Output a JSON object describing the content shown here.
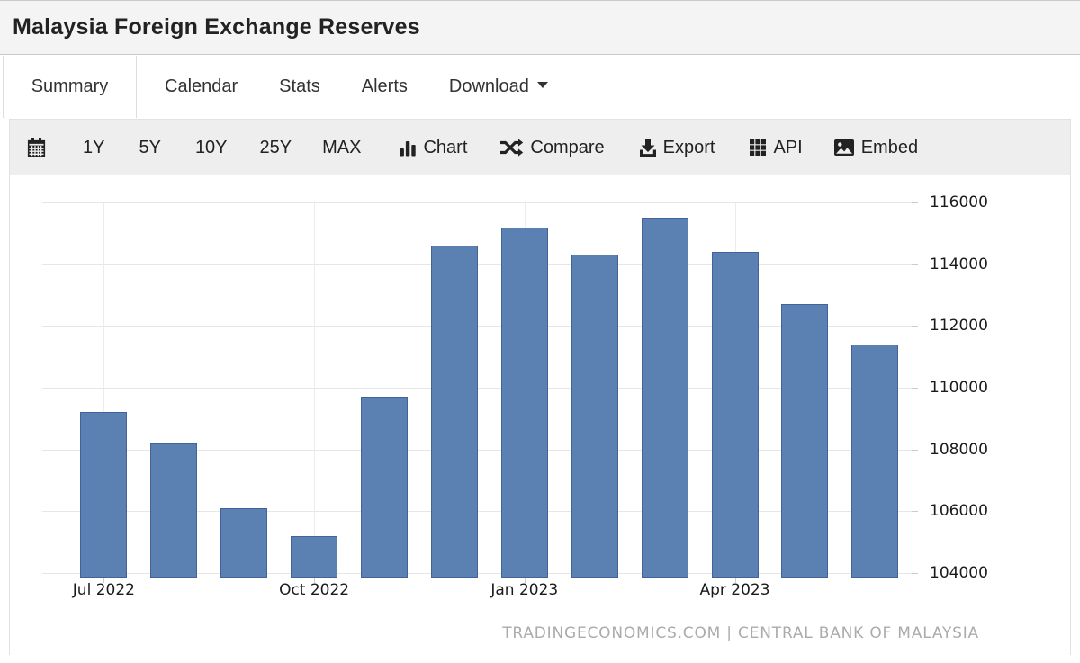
{
  "header": {
    "title": "Malaysia Foreign Exchange Reserves"
  },
  "tabs": [
    {
      "label": "Summary",
      "active": true
    },
    {
      "label": "Calendar",
      "active": false
    },
    {
      "label": "Stats",
      "active": false
    },
    {
      "label": "Alerts",
      "active": false
    },
    {
      "label": "Download",
      "active": false,
      "has_caret": true
    }
  ],
  "toolbar": {
    "calendar_icon": "calendar-icon",
    "ranges": [
      "1Y",
      "5Y",
      "10Y",
      "25Y",
      "MAX"
    ],
    "buttons": [
      {
        "icon": "bar-chart-icon",
        "label": "Chart"
      },
      {
        "icon": "shuffle-icon",
        "label": "Compare"
      },
      {
        "icon": "download-icon",
        "label": "Export"
      },
      {
        "icon": "grid-icon",
        "label": "API"
      },
      {
        "icon": "image-icon",
        "label": "Embed"
      }
    ]
  },
  "chart_data": {
    "type": "bar",
    "categories": [
      "Jul 2022",
      "Aug 2022",
      "Sep 2022",
      "Oct 2022",
      "Nov 2022",
      "Dec 2022",
      "Jan 2023",
      "Feb 2023",
      "Mar 2023",
      "Apr 2023",
      "May 2023",
      "Jun 2023"
    ],
    "values": [
      109200,
      108200,
      106100,
      105200,
      109700,
      114600,
      115200,
      114300,
      115500,
      114400,
      112700,
      111400
    ],
    "x_tick_labels": [
      {
        "index": 0,
        "label": "Jul 2022"
      },
      {
        "index": 3,
        "label": "Oct 2022"
      },
      {
        "index": 6,
        "label": "Jan 2023"
      },
      {
        "index": 9,
        "label": "Apr 2023"
      }
    ],
    "y_ticks": [
      104000,
      106000,
      108000,
      110000,
      112000,
      114000,
      116000
    ],
    "ylim": [
      103850,
      116440
    ],
    "grid": true,
    "legend": "none",
    "bar_color": "#5b81b2",
    "bar_border_color": "#41629b",
    "attribution": "TRADINGECONOMICS.COM | CENTRAL BANK OF MALAYSIA"
  }
}
